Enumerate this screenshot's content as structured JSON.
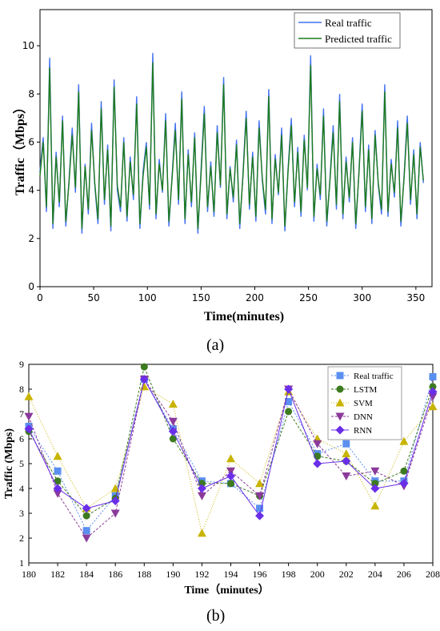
{
  "captions": {
    "a": "(a)",
    "b": "(b)"
  },
  "chart_data": [
    {
      "type": "line",
      "xlabel": "Time(minutes)",
      "ylabel": "Traffic（Mbps）",
      "xlim": [
        0,
        365
      ],
      "ylim": [
        0,
        11.5
      ],
      "xticks": [
        0,
        50,
        100,
        150,
        200,
        250,
        300,
        350
      ],
      "yticks": [
        0,
        2,
        4,
        6,
        8,
        10
      ],
      "legend_position": "top-right",
      "series": [
        {
          "name": "Real traffic",
          "color": "#4472ee",
          "values": [
            4.8,
            6.2,
            3.1,
            9.5,
            2.4,
            5.6,
            3.3,
            7.1,
            2.5,
            4.4,
            6.6,
            3.9,
            8.4,
            2.2,
            5.1,
            3.0,
            6.8,
            4.2,
            2.6,
            7.7,
            3.4,
            5.9,
            2.3,
            8.6,
            4.0,
            3.1,
            6.2,
            2.7,
            5.4,
            3.6,
            7.9,
            2.4,
            4.8,
            6.0,
            3.2,
            9.7,
            2.8,
            5.3,
            3.9,
            7.2,
            2.5,
            4.6,
            6.8,
            3.4,
            8.1,
            2.6,
            5.7,
            3.3,
            6.4,
            2.2,
            4.9,
            7.5,
            3.1,
            5.2,
            2.9,
            6.7,
            4.1,
            8.7,
            2.8,
            5.0,
            3.5,
            6.1,
            2.4,
            4.7,
            7.3,
            3.2,
            5.6,
            2.7,
            6.9,
            4.4,
            3.0,
            8.2,
            2.6,
            5.5,
            3.8,
            6.6,
            2.3,
            4.9,
            7.0,
            3.3,
            5.8,
            2.9,
            6.3,
            4.0,
            9.6,
            2.7,
            5.1,
            3.6,
            7.4,
            2.5,
            4.5,
            6.7,
            3.2,
            8.0,
            2.8,
            5.4,
            3.5,
            6.2,
            2.4,
            4.8,
            7.6,
            3.1,
            5.9,
            2.6,
            6.5,
            4.2,
            3.0,
            8.4,
            2.9,
            5.3,
            3.7,
            6.9,
            2.5,
            4.6,
            7.1,
            3.4,
            5.7,
            2.8,
            6.0,
            4.3
          ],
          "step_minutes": 3
        },
        {
          "name": "Predicted traffic",
          "color": "#1d7a1d",
          "values": [
            4.6,
            6.0,
            3.3,
            9.1,
            2.6,
            5.4,
            3.5,
            6.9,
            2.7,
            4.3,
            6.3,
            4.1,
            8.1,
            2.4,
            5.0,
            3.2,
            6.5,
            4.3,
            2.8,
            7.4,
            3.6,
            5.7,
            2.5,
            8.3,
            4.2,
            3.3,
            6.0,
            2.9,
            5.2,
            3.8,
            7.6,
            2.6,
            4.6,
            5.8,
            3.4,
            9.3,
            3.0,
            5.1,
            4.0,
            6.9,
            2.7,
            4.5,
            6.5,
            3.6,
            7.8,
            2.8,
            5.5,
            3.5,
            6.2,
            2.4,
            4.7,
            7.2,
            3.3,
            5.0,
            3.1,
            6.4,
            4.2,
            8.4,
            3.0,
            4.9,
            3.7,
            5.9,
            2.6,
            4.6,
            7.0,
            3.4,
            5.4,
            2.9,
            6.6,
            4.5,
            3.2,
            7.9,
            2.8,
            5.3,
            3.9,
            6.3,
            2.5,
            4.8,
            6.7,
            3.5,
            5.6,
            3.1,
            6.1,
            4.1,
            9.2,
            2.9,
            4.9,
            3.8,
            7.1,
            2.7,
            4.4,
            6.4,
            3.4,
            7.7,
            3.0,
            5.2,
            3.7,
            6.0,
            2.6,
            4.7,
            7.3,
            3.3,
            5.7,
            2.8,
            6.3,
            4.3,
            3.2,
            8.1,
            3.1,
            5.1,
            3.9,
            6.6,
            2.7,
            4.5,
            6.8,
            3.6,
            5.5,
            3.0,
            5.8,
            4.4
          ],
          "step_minutes": 3
        }
      ]
    },
    {
      "type": "line",
      "xlabel": "Time（minutes）",
      "ylabel": "Traffic (Mbps)",
      "xlim": [
        180,
        208
      ],
      "ylim": [
        1,
        9
      ],
      "categories": [
        180,
        182,
        184,
        186,
        188,
        190,
        192,
        194,
        196,
        198,
        200,
        202,
        204,
        206,
        208
      ],
      "legend_position": "top-right",
      "series": [
        {
          "name": "Real traffic",
          "color": "#5b8ff0",
          "marker": "square",
          "dash": "2,2",
          "values": [
            6.5,
            4.7,
            2.3,
            3.7,
            8.4,
            6.4,
            4.3,
            4.2,
            3.2,
            7.5,
            5.4,
            5.8,
            4.3,
            4.3,
            8.5
          ]
        },
        {
          "name": "LSTM",
          "color": "#3d7a20",
          "marker": "circle",
          "dash": "3,2",
          "values": [
            6.3,
            4.3,
            2.9,
            3.6,
            8.9,
            6.0,
            4.2,
            4.2,
            3.7,
            7.1,
            5.3,
            5.1,
            4.2,
            4.7,
            8.1
          ]
        },
        {
          "name": "SVM",
          "color": "#c8b400",
          "marker": "triangle",
          "dash": "1,2",
          "values": [
            7.7,
            5.3,
            3.2,
            4.0,
            8.1,
            7.4,
            2.2,
            5.2,
            4.2,
            7.9,
            6.0,
            5.4,
            3.3,
            5.9,
            7.3
          ]
        },
        {
          "name": "DNN",
          "color": "#8b3a9a",
          "marker": "tri-down",
          "dash": "3,2",
          "values": [
            6.9,
            3.8,
            2.0,
            3.0,
            8.4,
            6.7,
            3.7,
            4.7,
            3.7,
            8.0,
            5.8,
            4.5,
            4.7,
            4.1,
            7.7
          ]
        },
        {
          "name": "RNN",
          "color": "#6a2ee8",
          "marker": "diamond",
          "dash": "",
          "values": [
            6.4,
            4.0,
            3.2,
            3.5,
            8.4,
            6.3,
            4.0,
            4.5,
            2.9,
            8.0,
            5.0,
            5.1,
            4.0,
            4.2,
            7.9
          ]
        }
      ]
    }
  ]
}
